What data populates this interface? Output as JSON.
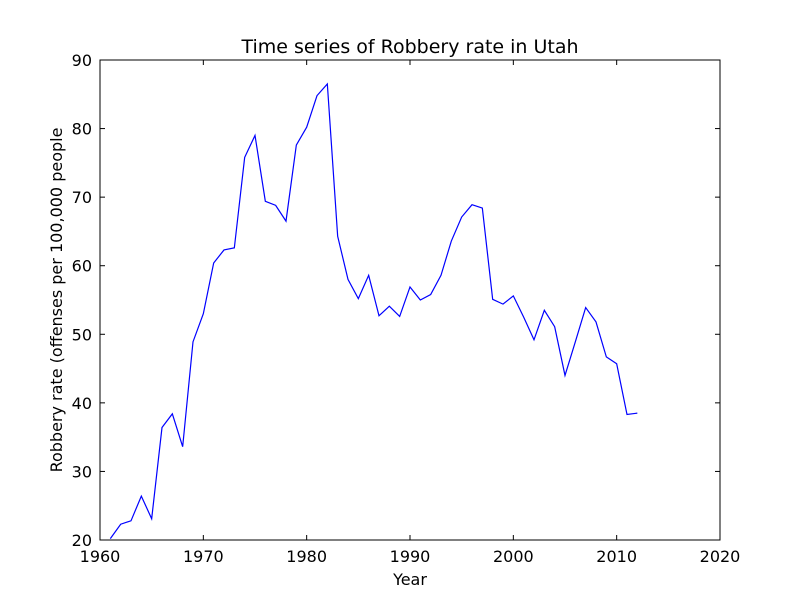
{
  "chart_data": {
    "type": "line",
    "title": "Time series of Robbery rate in Utah",
    "xlabel": "Year",
    "ylabel": "Robbery rate (offenses per 100,000 people",
    "xlim": [
      1960,
      2020
    ],
    "ylim": [
      20,
      90
    ],
    "xticks": [
      1960,
      1970,
      1980,
      1990,
      2000,
      2010,
      2020
    ],
    "yticks": [
      20,
      30,
      40,
      50,
      60,
      70,
      80,
      90
    ],
    "grid": false,
    "line_color": "#0000ff",
    "series": [
      {
        "x": [
          1961,
          1962,
          1963,
          1964,
          1965,
          1966,
          1967,
          1968,
          1969,
          1970,
          1971,
          1972,
          1973,
          1974,
          1975,
          1976,
          1977,
          1978,
          1979,
          1980,
          1981,
          1982,
          1983,
          1984,
          1985,
          1986,
          1987,
          1988,
          1989,
          1990,
          1991,
          1992,
          1993,
          1994,
          1995,
          1996,
          1997,
          1998,
          1999,
          2000,
          2001,
          2002,
          2003,
          2004,
          2005,
          2006,
          2007,
          2008,
          2009,
          2010,
          2011,
          2012
        ],
        "y": [
          20.2,
          22.3,
          22.8,
          26.4,
          23.1,
          36.4,
          38.4,
          33.6,
          48.9,
          53.0,
          60.4,
          62.3,
          62.6,
          75.8,
          79.0,
          69.4,
          68.8,
          66.5,
          77.6,
          80.2,
          84.8,
          86.5,
          64.3,
          58.0,
          55.2,
          58.6,
          52.7,
          54.1,
          52.6,
          56.9,
          55.0,
          55.8,
          58.6,
          63.6,
          67.1,
          68.9,
          68.4,
          55.1,
          54.4,
          55.6,
          52.5,
          49.2,
          53.5,
          51.1,
          44.0,
          48.9,
          53.9,
          51.8,
          46.7,
          45.7,
          38.3,
          38.5
        ]
      }
    ]
  }
}
